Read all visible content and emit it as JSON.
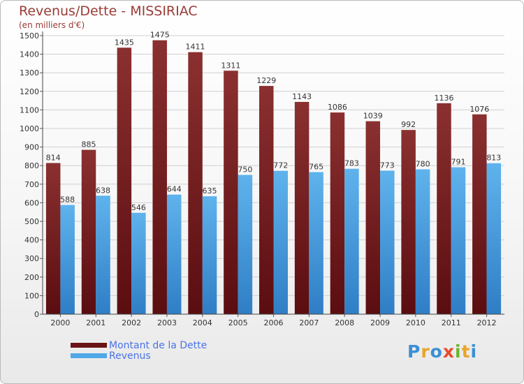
{
  "title": "Revenus/Dette - MISSIRIAC",
  "subtitle": "(en milliers d'€)",
  "logo": {
    "text": "Proxiti",
    "colors": [
      "#3b8fd6",
      "#e8a52a",
      "#3b8fd6",
      "#e84a2a",
      "#6bb52a",
      "#e8a52a",
      "#3b8fd6"
    ]
  },
  "legend": [
    {
      "label": "Montant de la Dette",
      "color": "#6b1416"
    },
    {
      "label": "Revenus",
      "color": "#4fa8e8"
    }
  ],
  "colors": {
    "dette_top": "#8b3030",
    "dette_bottom": "#5a0d10",
    "revenus_top": "#5fb3ec",
    "revenus_bottom": "#2f7ec6",
    "grid": "#d0d0d0"
  },
  "chart_data": {
    "type": "bar",
    "title": "Revenus/Dette - MISSIRIAC",
    "subtitle": "(en milliers d'€)",
    "categories": [
      "2000",
      "2001",
      "2002",
      "2003",
      "2004",
      "2005",
      "2006",
      "2007",
      "2008",
      "2009",
      "2010",
      "2011",
      "2012"
    ],
    "series": [
      {
        "name": "Montant de la Dette",
        "values": [
          814,
          885,
          1435,
          1475,
          1411,
          1311,
          1229,
          1143,
          1086,
          1039,
          992,
          1136,
          1076
        ]
      },
      {
        "name": "Revenus",
        "values": [
          588,
          638,
          546,
          644,
          635,
          750,
          772,
          765,
          783,
          773,
          780,
          791,
          813
        ]
      }
    ],
    "ylim": [
      0,
      1500
    ],
    "yticks": [
      0,
      100,
      200,
      300,
      400,
      500,
      600,
      700,
      800,
      900,
      1000,
      1100,
      1200,
      1300,
      1400,
      1500
    ],
    "grid": true,
    "legend_position": "bottom-left",
    "xlabel": "",
    "ylabel": ""
  }
}
